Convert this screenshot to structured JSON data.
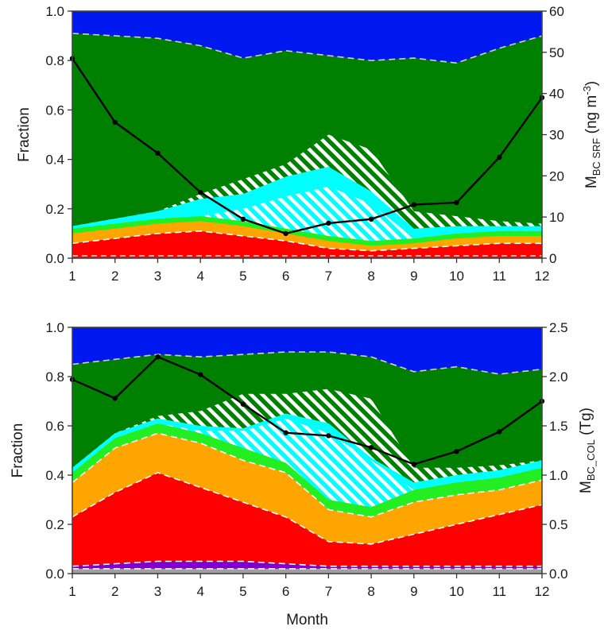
{
  "colors": {
    "blue": "#0018f0",
    "green": "#008000",
    "cyan": "#00ffff",
    "light_green": "#22ee22",
    "orange": "#ffa500",
    "red": "#ff0000",
    "purple": "#8000d0",
    "gray": "#a0a0a0",
    "line": "#000000"
  },
  "chart_data": [
    {
      "type": "area",
      "xlabel": "",
      "ylabel": "Fraction",
      "y2label": "M",
      "y2label_sub": "BC SRF",
      "y2label_unit": "(ng m",
      "y2label_sup": "-3",
      "y2label_close": ")",
      "x": [
        1,
        2,
        3,
        4,
        5,
        6,
        7,
        8,
        9,
        10,
        11,
        12
      ],
      "xticks": [
        "1",
        "2",
        "3",
        "4",
        "5",
        "6",
        "7",
        "8",
        "9",
        "10",
        "11",
        "12"
      ],
      "ylim": [
        0,
        1
      ],
      "yticks": [
        "0.0",
        "0.2",
        "0.4",
        "0.6",
        "0.8",
        "1.0"
      ],
      "y2lim": [
        0,
        60
      ],
      "y2ticks": [
        "0",
        "10",
        "20",
        "30",
        "40",
        "50",
        "60"
      ],
      "boundaries": {
        "red_top": [
          0.06,
          0.08,
          0.1,
          0.11,
          0.09,
          0.07,
          0.04,
          0.03,
          0.04,
          0.05,
          0.06,
          0.06
        ],
        "orange_top": [
          0.1,
          0.12,
          0.14,
          0.15,
          0.13,
          0.1,
          0.07,
          0.05,
          0.06,
          0.08,
          0.09,
          0.09
        ],
        "lightgreen_top": [
          0.12,
          0.14,
          0.16,
          0.17,
          0.15,
          0.12,
          0.09,
          0.07,
          0.08,
          0.1,
          0.11,
          0.11
        ],
        "cyan_hatch_top": [
          0.12,
          0.14,
          0.16,
          0.17,
          0.2,
          0.25,
          0.29,
          0.22,
          0.08,
          0.1,
          0.11,
          0.11
        ],
        "cyan_top": [
          0.13,
          0.16,
          0.19,
          0.24,
          0.26,
          0.33,
          0.37,
          0.27,
          0.12,
          0.13,
          0.13,
          0.13
        ],
        "green_hatch_top": [
          0.13,
          0.16,
          0.19,
          0.26,
          0.32,
          0.38,
          0.5,
          0.44,
          0.19,
          0.17,
          0.15,
          0.14
        ],
        "green_top": [
          0.91,
          0.9,
          0.89,
          0.86,
          0.81,
          0.84,
          0.82,
          0.8,
          0.81,
          0.79,
          0.85,
          0.9
        ],
        "blue_top": [
          1,
          1,
          1,
          1,
          1,
          1,
          1,
          1,
          1,
          1,
          1,
          1
        ],
        "dashed_bottom": [
          0.01,
          0.01,
          0.01,
          0.01,
          0.01,
          0.01,
          0.01,
          0.01,
          0.01,
          0.01,
          0.01,
          0.01
        ]
      },
      "series": [
        {
          "values": [
            48.5,
            33.0,
            25.5,
            16.0,
            9.5,
            6.0,
            8.5,
            9.5,
            13.0,
            13.5,
            24.5,
            39.0
          ]
        }
      ]
    },
    {
      "type": "area",
      "xlabel": "Month",
      "ylabel": "Fraction",
      "y2label": "M",
      "y2label_sub": "BC_COL",
      "y2label_unit": "(Tg)",
      "x": [
        1,
        2,
        3,
        4,
        5,
        6,
        7,
        8,
        9,
        10,
        11,
        12
      ],
      "xticks": [
        "1",
        "2",
        "3",
        "4",
        "5",
        "6",
        "7",
        "8",
        "9",
        "10",
        "11",
        "12"
      ],
      "ylim": [
        0,
        1
      ],
      "yticks": [
        "0.0",
        "0.2",
        "0.4",
        "0.6",
        "0.8",
        "1.0"
      ],
      "y2lim": [
        0,
        2.5
      ],
      "y2ticks": [
        "0.0",
        "0.5",
        "1.0",
        "1.5",
        "2.0",
        "2.5"
      ],
      "boundaries": {
        "gray_top": [
          0.02,
          0.02,
          0.02,
          0.02,
          0.02,
          0.02,
          0.02,
          0.02,
          0.02,
          0.02,
          0.02,
          0.02
        ],
        "purple_top": [
          0.03,
          0.04,
          0.05,
          0.05,
          0.05,
          0.04,
          0.03,
          0.03,
          0.03,
          0.03,
          0.03,
          0.03
        ],
        "red_top": [
          0.23,
          0.33,
          0.41,
          0.35,
          0.29,
          0.23,
          0.13,
          0.12,
          0.16,
          0.2,
          0.24,
          0.28
        ],
        "orange_top": [
          0.37,
          0.51,
          0.57,
          0.53,
          0.46,
          0.41,
          0.26,
          0.23,
          0.29,
          0.32,
          0.34,
          0.38
        ],
        "lightgreen_top": [
          0.41,
          0.55,
          0.61,
          0.57,
          0.51,
          0.45,
          0.3,
          0.27,
          0.34,
          0.37,
          0.39,
          0.43
        ],
        "cyan_hatch_top": [
          0.41,
          0.55,
          0.61,
          0.58,
          0.58,
          0.63,
          0.57,
          0.46,
          0.34,
          0.37,
          0.39,
          0.43
        ],
        "cyan_top": [
          0.43,
          0.57,
          0.63,
          0.6,
          0.59,
          0.65,
          0.61,
          0.47,
          0.37,
          0.4,
          0.42,
          0.46
        ],
        "green_hatch_top": [
          0.43,
          0.57,
          0.64,
          0.66,
          0.73,
          0.73,
          0.75,
          0.71,
          0.43,
          0.43,
          0.44,
          0.46
        ],
        "green_top": [
          0.85,
          0.87,
          0.89,
          0.88,
          0.89,
          0.9,
          0.9,
          0.88,
          0.82,
          0.84,
          0.81,
          0.83
        ],
        "blue_top": [
          1,
          1,
          1,
          1,
          1,
          1,
          1,
          1,
          1,
          1,
          1,
          1
        ]
      },
      "series": [
        {
          "values": [
            1.97,
            1.78,
            2.2,
            2.02,
            1.72,
            1.43,
            1.4,
            1.28,
            1.11,
            1.24,
            1.44,
            1.75
          ]
        }
      ]
    }
  ]
}
